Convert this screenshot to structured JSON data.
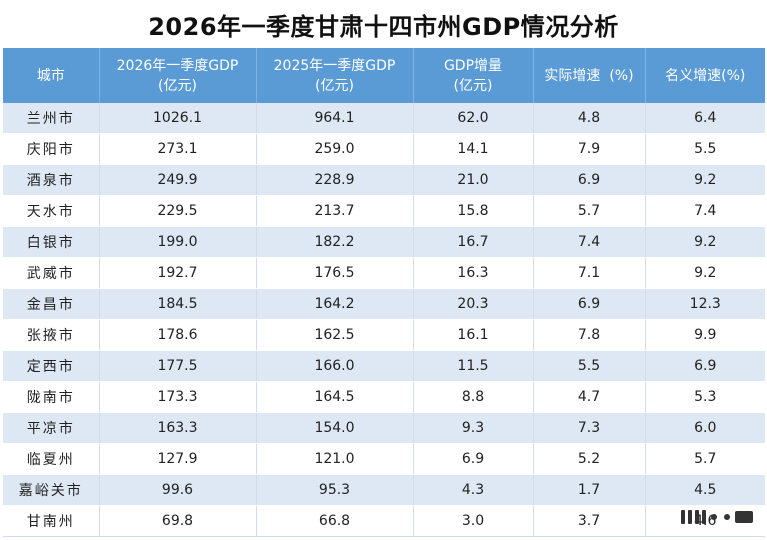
{
  "title": "2026年一季度甘肃十四市州GDP情况分析",
  "headers": {
    "city": "城市",
    "gdp2026": "2026年一季度GDP",
    "gdp2026_unit": "(亿元)",
    "gdp2025": "2025年一季度GDP",
    "gdp2025_unit": "(亿元)",
    "increase": "GDP增量",
    "increase_unit": "(亿元)",
    "real_growth": "实际增速  (%)",
    "nominal_growth": "名义增速(%)"
  },
  "rows": [
    {
      "city": "兰州市",
      "gdp2026": "1026.1",
      "gdp2025": "964.1",
      "increase": "62.0",
      "real": "4.8",
      "nominal": "6.4"
    },
    {
      "city": "庆阳市",
      "gdp2026": "273.1",
      "gdp2025": "259.0",
      "increase": "14.1",
      "real": "7.9",
      "nominal": "5.5"
    },
    {
      "city": "酒泉市",
      "gdp2026": "249.9",
      "gdp2025": "228.9",
      "increase": "21.0",
      "real": "6.9",
      "nominal": "9.2"
    },
    {
      "city": "天水市",
      "gdp2026": "229.5",
      "gdp2025": "213.7",
      "increase": "15.8",
      "real": "5.7",
      "nominal": "7.4"
    },
    {
      "city": "白银市",
      "gdp2026": "199.0",
      "gdp2025": "182.2",
      "increase": "16.7",
      "real": "7.4",
      "nominal": "9.2"
    },
    {
      "city": "武威市",
      "gdp2026": "192.7",
      "gdp2025": "176.5",
      "increase": "16.3",
      "real": "7.1",
      "nominal": "9.2"
    },
    {
      "city": "金昌市",
      "gdp2026": "184.5",
      "gdp2025": "164.2",
      "increase": "20.3",
      "real": "6.9",
      "nominal": "12.3"
    },
    {
      "city": "张掖市",
      "gdp2026": "178.6",
      "gdp2025": "162.5",
      "increase": "16.1",
      "real": "7.8",
      "nominal": "9.9"
    },
    {
      "city": "定西市",
      "gdp2026": "177.5",
      "gdp2025": "166.0",
      "increase": "11.5",
      "real": "5.5",
      "nominal": "6.9"
    },
    {
      "city": "陇南市",
      "gdp2026": "173.3",
      "gdp2025": "164.5",
      "increase": "8.8",
      "real": "4.7",
      "nominal": "5.3"
    },
    {
      "city": "平凉市",
      "gdp2026": "163.3",
      "gdp2025": "154.0",
      "increase": "9.3",
      "real": "7.3",
      "nominal": "6.0"
    },
    {
      "city": "临夏州",
      "gdp2026": "127.9",
      "gdp2025": "121.0",
      "increase": "6.9",
      "real": "5.2",
      "nominal": "5.7"
    },
    {
      "city": "嘉峪关市",
      "gdp2026": "99.6",
      "gdp2025": "95.3",
      "increase": "4.3",
      "real": "1.7",
      "nominal": "4.5"
    },
    {
      "city": "甘南州",
      "gdp2026": "69.8",
      "gdp2025": "66.8",
      "increase": "3.0",
      "real": "3.7",
      "nominal": "4.6"
    }
  ]
}
